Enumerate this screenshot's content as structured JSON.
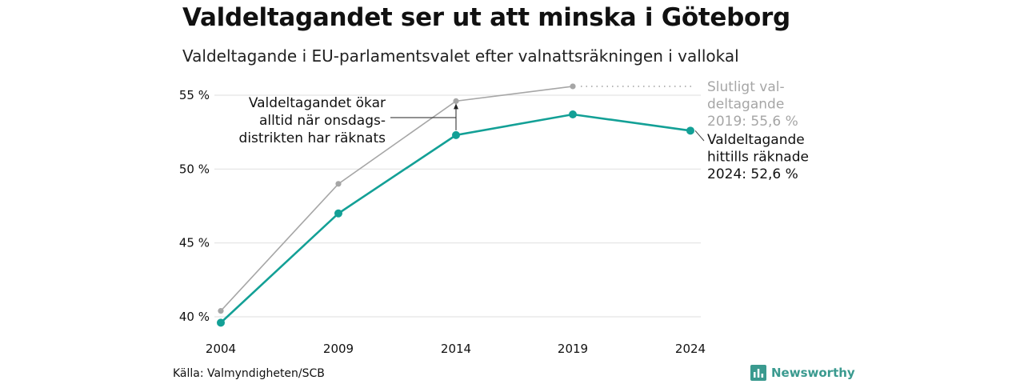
{
  "header": {
    "title": "Valdeltagandet ser ut att minska i Göteborg",
    "subtitle": "Valdeltagande i EU-parlamentsvalet efter valnattsräkningen i vallokal"
  },
  "footer": {
    "source": "Källa: Valmyndigheten/SCB",
    "brand": "Newsworthy"
  },
  "colors": {
    "counted_line": "#13a096",
    "final_line": "#a6a6a6",
    "grid": "#e3e3e3"
  },
  "chart_data": {
    "type": "line",
    "title": "Valdeltagandet ser ut att minska i Göteborg",
    "subtitle": "Valdeltagande i EU-parlamentsvalet efter valnattsräkningen i vallokal",
    "categories": [
      "2004",
      "2009",
      "2014",
      "2019",
      "2024"
    ],
    "x_tick_labels": [
      "2004",
      "2009",
      "2014",
      "2019",
      "2024"
    ],
    "y_ticks": [
      40,
      45,
      50,
      55
    ],
    "y_tick_labels": [
      "40 %",
      "45 %",
      "50 %",
      "55 %"
    ],
    "ylim": [
      39.6,
      56.4
    ],
    "grid": true,
    "series": [
      {
        "key": "final",
        "values": [
          40.4,
          49.0,
          54.6,
          55.6,
          null
        ]
      },
      {
        "key": "counted",
        "values": [
          39.6,
          47.0,
          52.3,
          53.7,
          52.6
        ]
      }
    ],
    "annotations": {
      "onsdag": [
        "Valdeltagandet ökar",
        "alltid när onsdags-",
        "distrikten har räknats"
      ],
      "final_label": [
        "Slutligt val-",
        "deltagande",
        "2019: 55,6 %"
      ],
      "counted_label": [
        "Valdeltagande",
        "hittills räknade",
        "2024: 52,6 %"
      ]
    }
  }
}
